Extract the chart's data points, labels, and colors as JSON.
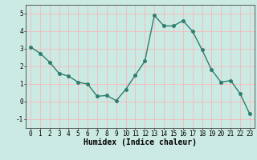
{
  "x": [
    0,
    1,
    2,
    3,
    4,
    5,
    6,
    7,
    8,
    9,
    10,
    11,
    12,
    13,
    14,
    15,
    16,
    17,
    18,
    19,
    20,
    21,
    22,
    23
  ],
  "y": [
    3.1,
    2.75,
    2.25,
    1.6,
    1.45,
    1.1,
    1.0,
    0.3,
    0.35,
    0.05,
    0.7,
    1.5,
    2.3,
    4.9,
    4.3,
    4.3,
    4.6,
    4.0,
    2.95,
    1.8,
    1.1,
    1.2,
    0.45,
    -0.7
  ],
  "line_color": "#2e7d6e",
  "marker": "o",
  "markersize": 2.5,
  "linewidth": 1.0,
  "xlabel": "Humidex (Indice chaleur)",
  "xlim": [
    -0.5,
    23.5
  ],
  "ylim": [
    -1.5,
    5.5
  ],
  "yticks": [
    -1,
    0,
    1,
    2,
    3,
    4,
    5
  ],
  "xticks": [
    0,
    1,
    2,
    3,
    4,
    5,
    6,
    7,
    8,
    9,
    10,
    11,
    12,
    13,
    14,
    15,
    16,
    17,
    18,
    19,
    20,
    21,
    22,
    23
  ],
  "bg_color": "#cceae4",
  "grid_color": "#f5b8b8",
  "tick_fontsize": 5.5,
  "xlabel_fontsize": 7.0
}
